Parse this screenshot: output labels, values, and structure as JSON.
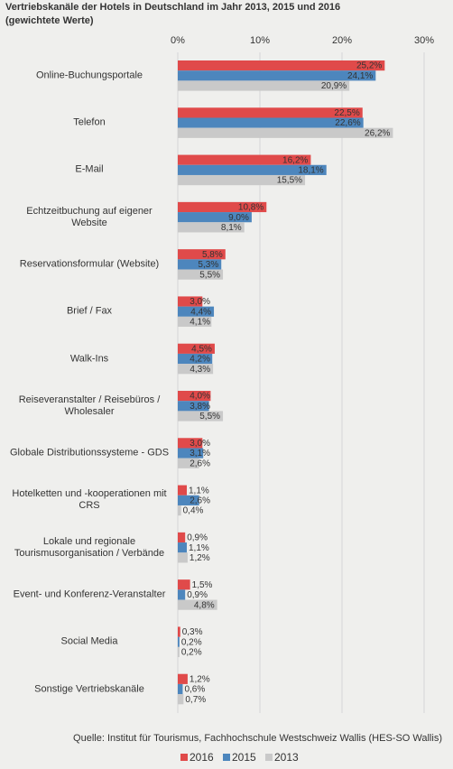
{
  "chart_data": {
    "type": "hbar",
    "title": "Vertriebskanäle der Hotels in Deutschland im Jahr 2013, 2015 und 2016",
    "subtitle": "(gewichtete Werte)",
    "source": "Quelle: Institut für Tourismus, Fachhochschule Westschweiz Wallis (HES-SO Wallis)",
    "categories": [
      "Online-Buchungsportale",
      "Telefon",
      "E-Mail",
      "Echtzeitbuchung auf eigener Website",
      "Reservationsformular (Website)",
      "Brief / Fax",
      "Walk-Ins",
      "Reiseveranstalter / Reisebüros / Wholesaler",
      "Globale Distributionssysteme - GDS",
      "Hotelketten und -kooperationen mit CRS",
      "Lokale und regionale Tourismusorganisation / Verbände",
      "Event- und Konferenz-Veranstalter",
      "Social Media",
      "Sonstige Vertriebskanäle"
    ],
    "series": [
      {
        "name": "2016",
        "color": "#e04a4a",
        "values": [
          25.2,
          22.5,
          16.2,
          10.8,
          5.8,
          3.0,
          4.5,
          4.0,
          3.0,
          1.1,
          0.9,
          1.5,
          0.3,
          1.2
        ],
        "value_labels": [
          "25,2%",
          "22,5%",
          "16,2%",
          "10,8%",
          "5,8%",
          "3,0%",
          "4,5%",
          "4,0%",
          "3,0%",
          "1,1%",
          "0,9%",
          "1,5%",
          "0,3%",
          "1,2%"
        ]
      },
      {
        "name": "2015",
        "color": "#4d86bd",
        "values": [
          24.1,
          22.6,
          18.1,
          9.0,
          5.3,
          4.4,
          4.2,
          3.8,
          3.1,
          2.6,
          1.1,
          0.9,
          0.2,
          0.6
        ],
        "value_labels": [
          "24,1%",
          "22,6%",
          "18,1%",
          "9,0%",
          "5,3%",
          "4,4%",
          "4,2%",
          "3,8%",
          "3,1%",
          "2,6%",
          "1,1%",
          "0,9%",
          "0,2%",
          "0,6%"
        ]
      },
      {
        "name": "2013",
        "color": "#c9c9c9",
        "values": [
          20.9,
          26.2,
          15.5,
          8.1,
          5.5,
          4.1,
          4.3,
          5.5,
          2.6,
          0.4,
          1.2,
          4.8,
          0.2,
          0.7
        ],
        "value_labels": [
          "20,9%",
          "26,2%",
          "15,5%",
          "8,1%",
          "5,5%",
          "4,1%",
          "4,3%",
          "5,5%",
          "2,6%",
          "0,4%",
          "1,2%",
          "4,8%",
          "0,2%",
          "0,7%"
        ]
      }
    ],
    "xlim": [
      0,
      30
    ],
    "xticks": [
      {
        "value": 0,
        "label": "0%"
      },
      {
        "value": 10,
        "label": "10%"
      },
      {
        "value": 20,
        "label": "20%"
      },
      {
        "value": 30,
        "label": "30%"
      }
    ],
    "grid": true
  }
}
